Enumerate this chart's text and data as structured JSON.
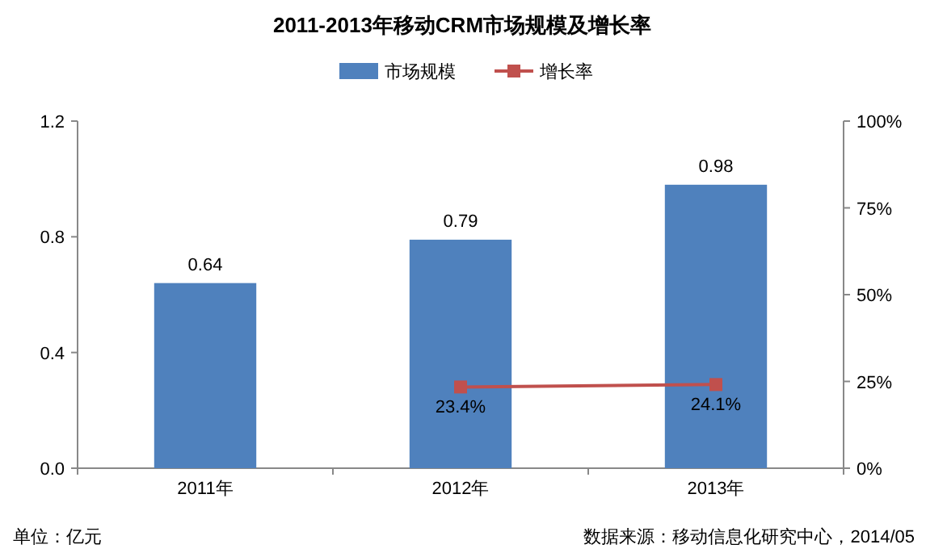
{
  "chart_data": {
    "type": "bar",
    "title": "2011-2013年移动CRM市场规模及增长率",
    "categories": [
      "2011年",
      "2012年",
      "2013年"
    ],
    "series": [
      {
        "name": "市场规模",
        "color": "#4f81bd",
        "values": [
          0.64,
          0.79,
          0.98
        ],
        "value_labels": [
          "0.64",
          "0.79",
          "0.98"
        ]
      },
      {
        "name": "增长率",
        "type": "line",
        "axis": "y2",
        "color": "#c0504d",
        "marker": "square",
        "values": [
          null,
          23.4,
          24.1
        ],
        "value_labels": [
          null,
          "23.4%",
          "24.1%"
        ]
      }
    ],
    "ylim": [
      0,
      1.2
    ],
    "yticks": [
      {
        "value": 0,
        "label": "0.0"
      },
      0.4,
      0.8,
      1.2
    ],
    "y2lim": [
      0,
      100
    ],
    "y2ticks": [
      {
        "value": 0,
        "label": "0%"
      },
      {
        "value": 25,
        "label": "25%"
      },
      {
        "value": 50,
        "label": "50%"
      },
      {
        "value": 75,
        "label": "75%"
      },
      {
        "value": 100,
        "label": "100%"
      }
    ],
    "legend": "top",
    "annotations": [
      "单位：亿元",
      "数据来源：移动信息化研究中心，2014/05"
    ]
  }
}
